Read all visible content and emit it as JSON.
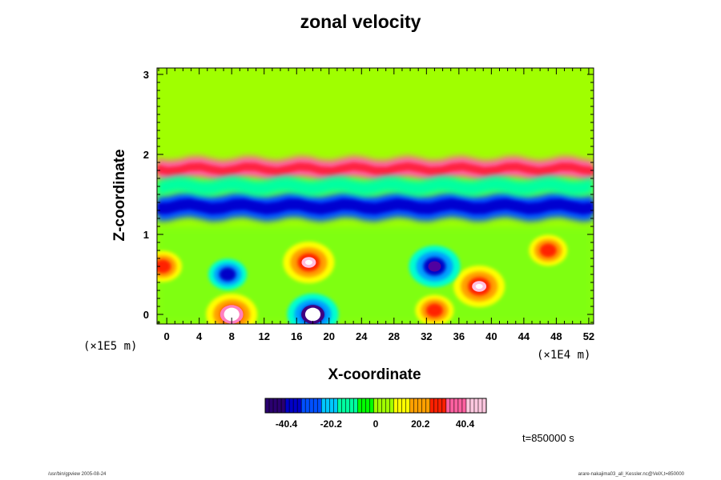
{
  "chart_data": {
    "type": "heatmap",
    "title": "zonal velocity",
    "xlabel": "X-coordinate",
    "ylabel": "Z-coordinate",
    "x_unit": "(×1E4 m)",
    "y_unit": "(×1E5 m)",
    "xlim": [
      -1.2,
      52.6
    ],
    "ylim": [
      -0.12,
      3.08
    ],
    "x_ticks": [
      "0",
      "4",
      "8",
      "12",
      "16",
      "20",
      "24",
      "28",
      "32",
      "36",
      "40",
      "44",
      "48",
      "52"
    ],
    "y_ticks": [
      "0",
      "1",
      "2",
      "3"
    ],
    "colorbar": {
      "range": [
        -50,
        50
      ],
      "ticks": [
        "-40.4",
        "-20.2",
        "0",
        "20.2",
        "40.4"
      ],
      "colors": [
        "#2a0070",
        "#0000c8",
        "#0050ff",
        "#00c8ff",
        "#00ffa0",
        "#00ff00",
        "#a0ff00",
        "#ffff00",
        "#ffa000",
        "#ff2000",
        "#ff60a0",
        "#ffc8e0"
      ]
    },
    "background_value": 0,
    "features": [
      {
        "name": "upper red band",
        "x_range": [
          -1.2,
          52.6
        ],
        "z": 1.82,
        "value": 42
      },
      {
        "name": "blue band",
        "x_range": [
          -1.2,
          52.6
        ],
        "z": 1.35,
        "value": -35
      },
      {
        "name": "cyan band",
        "x_range": [
          -1.2,
          52.6
        ],
        "z": 1.6,
        "value": -10
      },
      {
        "name": "red vortex",
        "x": 17.5,
        "z": 0.65,
        "value": 45
      },
      {
        "name": "red vortex",
        "x": 47,
        "z": 0.8,
        "value": 35
      },
      {
        "name": "red spot",
        "x": -0.5,
        "z": 0.6,
        "value": 35
      },
      {
        "name": "red spot",
        "x": 38.5,
        "z": 0.35,
        "value": 40
      },
      {
        "name": "red patch",
        "x": 33,
        "z": 0.05,
        "value": 35
      },
      {
        "name": "white maximum",
        "x": 8,
        "z": 0.0,
        "value": 55
      },
      {
        "name": "white minimum",
        "x": 18,
        "z": 0.0,
        "value": -55
      },
      {
        "name": "blue vortex",
        "x": 33,
        "z": 0.6,
        "value": -40
      },
      {
        "name": "blue patch",
        "x": 7.5,
        "z": 0.5,
        "value": -25
      }
    ],
    "time_label": "t=850000 s"
  },
  "footer": {
    "left": "/usr/bin/gpview 2005-08-24",
    "right": "arare-nakajima03_all_Kessler.nc@VelX,t=850000"
  }
}
